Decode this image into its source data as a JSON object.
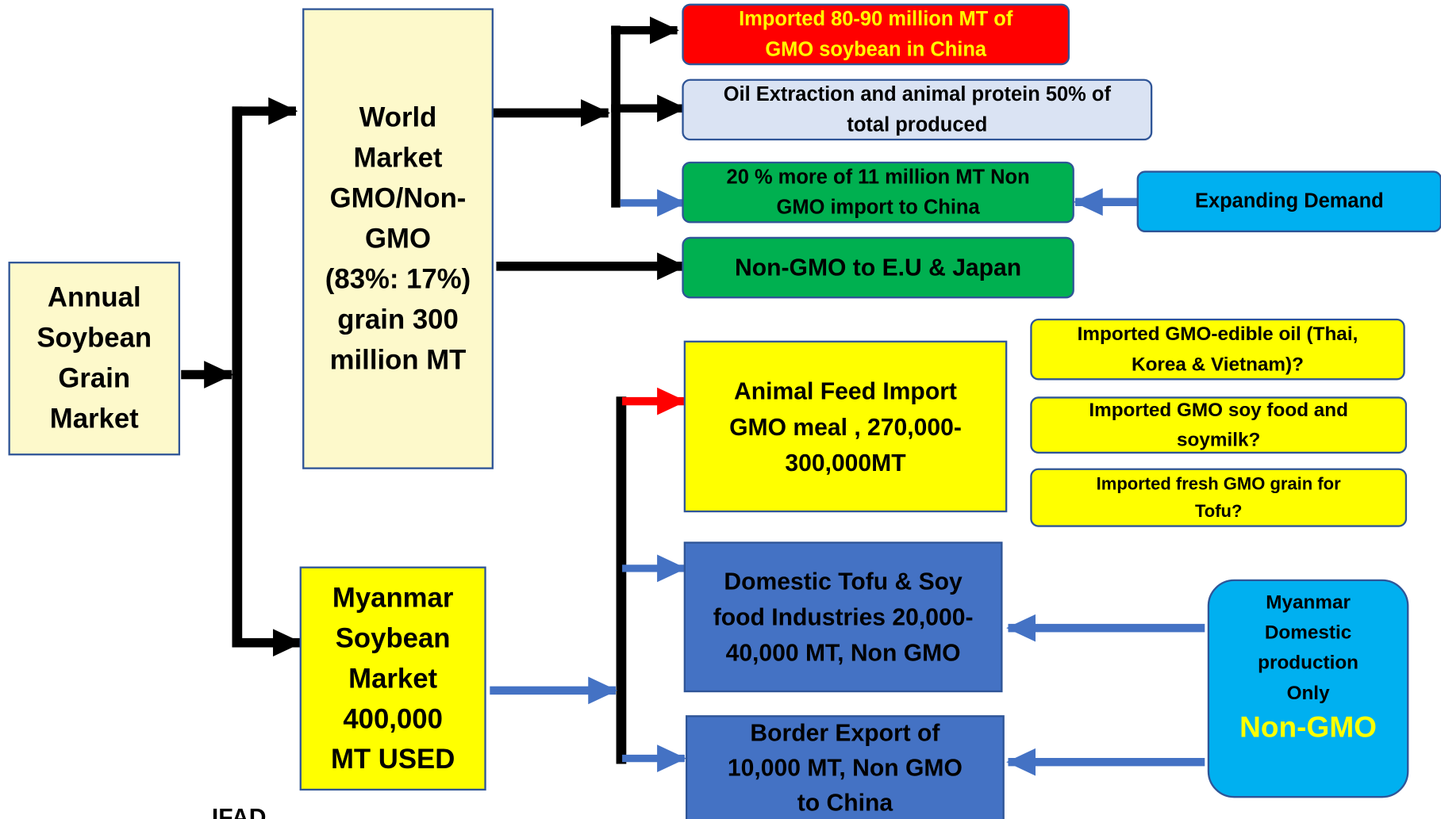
{
  "nodes": [
    {
      "lines": [
        "Annual",
        "Soybean",
        "Grain",
        "Market"
      ]
    },
    {
      "lines": [
        "World",
        "Market",
        "GMO/Non-",
        "GMO",
        "(83%: 17%)",
        "grain 300",
        "million MT"
      ]
    },
    {
      "lines": [
        "Myanmar",
        "Soybean",
        "Market",
        "400,000",
        "MT USED"
      ]
    },
    {
      "lines": [
        "Imported 80-90 million MT of",
        "GMO soybean in China"
      ]
    },
    {
      "lines": [
        "Oil Extraction and animal protein 50% of",
        "total produced"
      ]
    },
    {
      "lines": [
        "20 % more of 11 million MT Non",
        "GMO import to China"
      ]
    },
    {
      "lines": [
        "Expanding  Demand"
      ]
    },
    {
      "lines": [
        "Non-GMO to E.U & Japan"
      ]
    },
    {
      "lines": [
        "Animal Feed Import",
        "GMO meal , 270,000-",
        "300,000MT"
      ]
    },
    {
      "lines": [
        "Imported GMO-edible oil (Thai,",
        "Korea & Vietnam)?"
      ]
    },
    {
      "lines": [
        "Imported GMO soy food and",
        "soymilk?"
      ]
    },
    {
      "lines": [
        "Imported fresh GMO grain for",
        "Tofu?"
      ]
    },
    {
      "lines": [
        "Domestic Tofu & Soy",
        "food Industries 20,000-",
        "40,000 MT, Non GMO"
      ]
    },
    {
      "lines": [
        "Border Export of",
        "10,000 MT, Non GMO",
        "to China"
      ]
    },
    {
      "lines": [
        "Myanmar",
        "Domestic",
        "production",
        "Only",
        "Non-GMO"
      ]
    }
  ],
  "footer": {
    "logo": "IFAD"
  }
}
